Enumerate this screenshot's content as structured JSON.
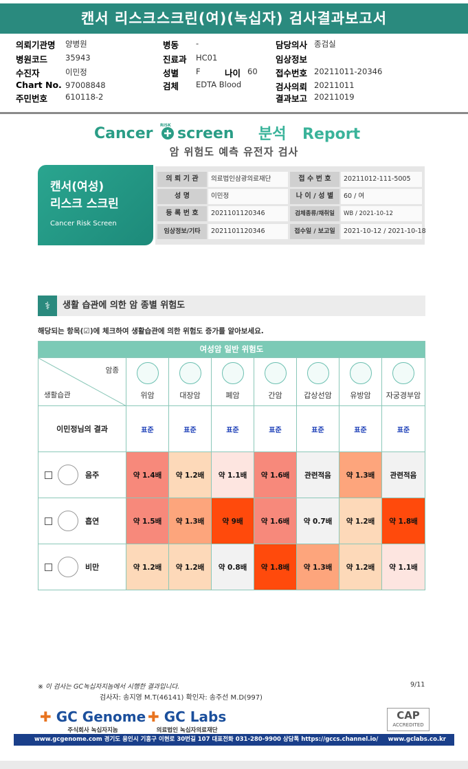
{
  "title": "캔서 리스크스크린(여)(녹십자) 검사결과보고서",
  "header": {
    "col1": [
      {
        "label": "의뢰기관명",
        "value": "양병원"
      },
      {
        "label": "병원코드",
        "value": "35943"
      },
      {
        "label": "수진자",
        "value": "이민정"
      },
      {
        "label": "Chart No.",
        "value": "97008848"
      },
      {
        "label": "주민번호",
        "value": "610118-2"
      }
    ],
    "col2": [
      {
        "label": "병동",
        "value": "-"
      },
      {
        "label": "진료과",
        "value": "HC01"
      },
      {
        "label": "성별",
        "value": "F"
      },
      {
        "label": "검체",
        "value": "EDTA Blood"
      }
    ],
    "age": {
      "label": "나이",
      "value": "60"
    },
    "col3": [
      {
        "label": "담당의사",
        "value": "종검실"
      },
      {
        "label": "임상정보",
        "value": ""
      },
      {
        "label": "접수번호",
        "value": "20211011-20346"
      },
      {
        "label": "검사의뢰",
        "value": "20211011"
      },
      {
        "label": "결과보고",
        "value": "20211019"
      }
    ]
  },
  "brand": {
    "cancer": "Cancer",
    "risk": "RISK",
    "screen": "screen",
    "analysis": "분석",
    "report": "Report",
    "subtitle": "암 위험도 예측 유전자 검사"
  },
  "card": {
    "line1": "캔서(여성)",
    "line2": "리스크 스크린",
    "line3": "Cancer Risk Screen"
  },
  "info": [
    {
      "label": "의 뢰 기 관",
      "value": "의료법인삼광의료재단"
    },
    {
      "label": "접 수 번 호",
      "value": "20211012-111-5005"
    },
    {
      "label": "성        명",
      "value": "이민정"
    },
    {
      "label": "나 이 / 성 별",
      "value": "60 / 여"
    },
    {
      "label": "등 록 번 호",
      "value": "2021101120346"
    },
    {
      "label": "검체종류/채취일",
      "value": "WB / 2021-10-12"
    },
    {
      "label": "임상정보/기타",
      "value": "2021101120346"
    },
    {
      "label": "접수일 / 보고일",
      "value": "2021-10-12 / 2021-10-18"
    }
  ],
  "section": {
    "title": "생활 습관에 의한 암 종별 위험도",
    "instruction": "해당되는 항목(☑)에 체크하여 생활습관에 의한 위험도 증가를 알아보세요."
  },
  "table": {
    "banner": "여성암 일반 위험도",
    "corner_top": "암종",
    "corner_bottom": "생활습관",
    "cancers": [
      "위암",
      "대장암",
      "폐암",
      "간암",
      "갑상선암",
      "유방암",
      "자궁경부암"
    ],
    "result_label": "이민정님의 결과",
    "results": [
      "표준",
      "표준",
      "표준",
      "표준",
      "표준",
      "표준",
      "표준"
    ],
    "habits": [
      {
        "name": "음주",
        "values": [
          "약 1.4배",
          "약 1.2배",
          "약 1.1배",
          "약 1.6배",
          "관련적음",
          "약 1.3배",
          "관련적음"
        ],
        "colors": [
          "#f7897b",
          "#fdd9b9",
          "#fde5e0",
          "#f7897b",
          "#f2f2f2",
          "#fda57c",
          "#f2f2f2"
        ]
      },
      {
        "name": "흡연",
        "values": [
          "약 1.5배",
          "약 1.3배",
          "약 9배",
          "약 1.6배",
          "약 0.7배",
          "약 1.2배",
          "약 1.8배"
        ],
        "colors": [
          "#f7897b",
          "#fda57c",
          "#ff4a0c",
          "#f7897b",
          "#f2f2f2",
          "#fdd9b9",
          "#ff4a0c"
        ]
      },
      {
        "name": "비만",
        "values": [
          "약 1.2배",
          "약 1.2배",
          "약 0.8배",
          "약 1.8배",
          "약 1.3배",
          "약 1.2배",
          "약 1.1배"
        ],
        "colors": [
          "#fdd9b9",
          "#fdd9b9",
          "#f2f2f2",
          "#ff4a0c",
          "#fda57c",
          "#fdd9b9",
          "#fde5e0"
        ]
      }
    ]
  },
  "footer": {
    "note": "※ 이 검사는 GC녹십자지놈에서 시행한 결과입니다.",
    "page": "9/11",
    "signatures": "검사자: 송지영 M.T(46141)          확인자: 송주선 M.D(997)",
    "gc_genome": "GC Genome",
    "gc_genome_sub": "주식회사 녹십자지놈",
    "gc_labs": "GC Labs",
    "gc_labs_sub": "의료법인 녹십자의료재단",
    "cap": "CAP",
    "cap_sub": "ACCREDITED",
    "bottom_left": "www.gcgenome.com 경기도 용인시 기흥구 이현로 30번길 107 대표전화 031-280-9900 상담톡 https://gccs.channel.io/",
    "bottom_right": "www.gclabs.co.kr"
  }
}
